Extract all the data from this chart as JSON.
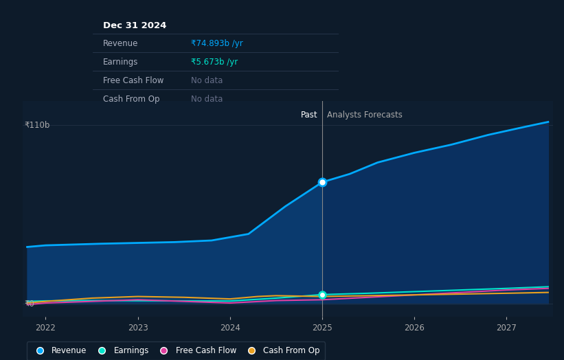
{
  "bg_color": "#0d1b2a",
  "plot_bg_color": "#0e1e30",
  "y_label_110b": "₹110b",
  "y_label_0": "₹0",
  "divider_x": 2025,
  "past_label": "Past",
  "forecast_label": "Analysts Forecasts",
  "revenue_past_x": [
    2021.8,
    2022.0,
    2022.3,
    2022.6,
    2023.0,
    2023.4,
    2023.8,
    2024.2,
    2024.6,
    2025.0
  ],
  "revenue_past_y": [
    35.0,
    36.0,
    36.5,
    37.0,
    37.5,
    38.0,
    39.0,
    43.0,
    60.0,
    74.893
  ],
  "revenue_forecast_x": [
    2025.0,
    2025.3,
    2025.6,
    2026.0,
    2026.4,
    2026.8,
    2027.2,
    2027.45
  ],
  "revenue_forecast_y": [
    74.893,
    80.0,
    87.0,
    93.0,
    98.0,
    104.0,
    109.0,
    112.0
  ],
  "earnings_past_x": [
    2021.8,
    2022.0,
    2022.5,
    2023.0,
    2023.5,
    2024.0,
    2024.5,
    2025.0
  ],
  "earnings_past_y": [
    1.5,
    1.8,
    2.0,
    1.9,
    1.8,
    1.7,
    3.5,
    5.673
  ],
  "earnings_forecast_x": [
    2025.0,
    2025.5,
    2026.0,
    2026.5,
    2027.0,
    2027.45
  ],
  "earnings_forecast_y": [
    5.673,
    6.5,
    7.5,
    8.5,
    9.5,
    10.5
  ],
  "fcf_past_x": [
    2021.8,
    2022.0,
    2022.5,
    2023.0,
    2023.5,
    2024.0,
    2024.5,
    2025.0
  ],
  "fcf_past_y": [
    -0.5,
    0.5,
    1.5,
    2.5,
    1.5,
    0.5,
    2.0,
    2.5
  ],
  "fcf_forecast_x": [
    2025.0,
    2025.5,
    2026.0,
    2026.5,
    2027.0,
    2027.45
  ],
  "fcf_forecast_y": [
    2.5,
    4.0,
    5.5,
    7.0,
    8.5,
    9.5
  ],
  "cashop_past_x": [
    2021.8,
    2022.0,
    2022.5,
    2023.0,
    2023.5,
    2024.0,
    2024.3,
    2024.5,
    2025.0
  ],
  "cashop_past_y": [
    0.5,
    1.5,
    3.5,
    4.5,
    4.0,
    3.0,
    4.5,
    5.0,
    4.5
  ],
  "cashop_forecast_x": [
    2025.0,
    2025.5,
    2026.0,
    2026.5,
    2027.0,
    2027.45
  ],
  "cashop_forecast_y": [
    4.5,
    5.0,
    5.5,
    6.0,
    6.5,
    7.0
  ],
  "revenue_color": "#00aaff",
  "earnings_color": "#00e5cc",
  "fcf_color": "#e040a0",
  "cashop_color": "#e8a020",
  "tooltip_title": "Dec 31 2024",
  "tooltip_revenue": "₹74.893b /yr",
  "tooltip_earnings": "₹5.673b /yr",
  "tooltip_fcf": "No data",
  "tooltip_cashop": "No data",
  "xlim": [
    2021.75,
    2027.5
  ],
  "ylim": [
    -8,
    125
  ],
  "xticks": [
    2022,
    2023,
    2024,
    2025,
    2026,
    2027
  ],
  "xtick_labels": [
    "2022",
    "2023",
    "2024",
    "2025",
    "2026",
    "2027"
  ]
}
